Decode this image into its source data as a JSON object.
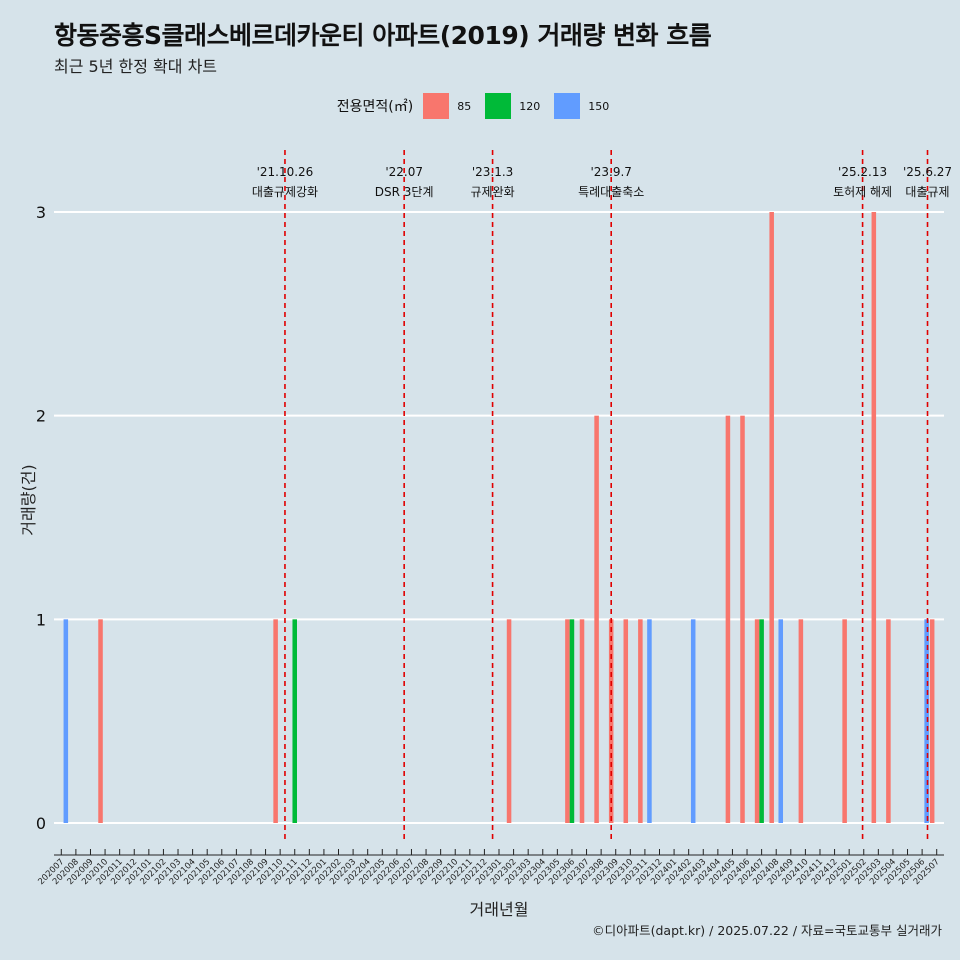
{
  "title": "항동중흥S클래스베르데카운티 아파트(2019) 거래량 변화 흐름",
  "subtitle": "최근 5년 한정 확대 차트",
  "caption": "©디아파트(dapt.kr) / 2025.07.22 / 자료=국토교통부 실거래가",
  "legend": {
    "title": "전용면적(㎡)",
    "items": [
      {
        "label": "85",
        "color": "#f8766d"
      },
      {
        "label": "120",
        "color": "#00ba38"
      },
      {
        "label": "150",
        "color": "#619cff"
      }
    ]
  },
  "chart_data": {
    "type": "bar",
    "xlabel": "거래년월",
    "ylabel": "거래량(건)",
    "ylim": [
      0,
      3
    ],
    "yticks": [
      0,
      1,
      2,
      3
    ],
    "grid": true,
    "legend_position": "top",
    "categories": [
      "202007",
      "202008",
      "202009",
      "202010",
      "202011",
      "202012",
      "202101",
      "202102",
      "202103",
      "202104",
      "202105",
      "202106",
      "202107",
      "202108",
      "202109",
      "202110",
      "202111",
      "202112",
      "202201",
      "202202",
      "202203",
      "202204",
      "202205",
      "202206",
      "202207",
      "202208",
      "202209",
      "202210",
      "202211",
      "202212",
      "202301",
      "202302",
      "202303",
      "202304",
      "202305",
      "202306",
      "202307",
      "202308",
      "202309",
      "202310",
      "202311",
      "202312",
      "202401",
      "202402",
      "202403",
      "202404",
      "202405",
      "202406",
      "202407",
      "202408",
      "202409",
      "202410",
      "202411",
      "202412",
      "202501",
      "202502",
      "202503",
      "202504",
      "202505",
      "202506",
      "202507"
    ],
    "series": [
      {
        "name": "85",
        "color": "#f8766d",
        "values": {
          "202010": 1,
          "202110": 1,
          "202302": 1,
          "202306": 1,
          "202307": 1,
          "202308": 2,
          "202309": 1,
          "202310": 1,
          "202311": 1,
          "202405": 2,
          "202406": 2,
          "202407": 1,
          "202408": 3,
          "202410": 1,
          "202501": 1,
          "202503": 3,
          "202504": 1,
          "202507": 1
        }
      },
      {
        "name": "120",
        "color": "#00ba38",
        "values": {
          "202111": 1,
          "202306": 1,
          "202407": 1
        }
      },
      {
        "name": "150",
        "color": "#619cff",
        "values": {
          "202007": 1,
          "202311": 1,
          "202402": 1,
          "202408": 1,
          "202506": 1
        }
      }
    ],
    "annotations": [
      {
        "date": "'21.10.26",
        "label": "대출규제강화",
        "category": "202110",
        "offset": 0.83
      },
      {
        "date": "'22.07",
        "label": "DSR 3단계",
        "category": "202207",
        "offset": 0.0
      },
      {
        "date": "'23.1.3",
        "label": "규제완화",
        "category": "202301",
        "offset": 0.06
      },
      {
        "date": "'23.9.7",
        "label": "특례대출축소",
        "category": "202309",
        "offset": 0.19
      },
      {
        "date": "'25.2.13",
        "label": "토허제 해제",
        "category": "202502",
        "offset": 0.42
      },
      {
        "date": "'25.6.27",
        "label": "대출규제",
        "category": "202506",
        "offset": 0.87
      }
    ]
  }
}
